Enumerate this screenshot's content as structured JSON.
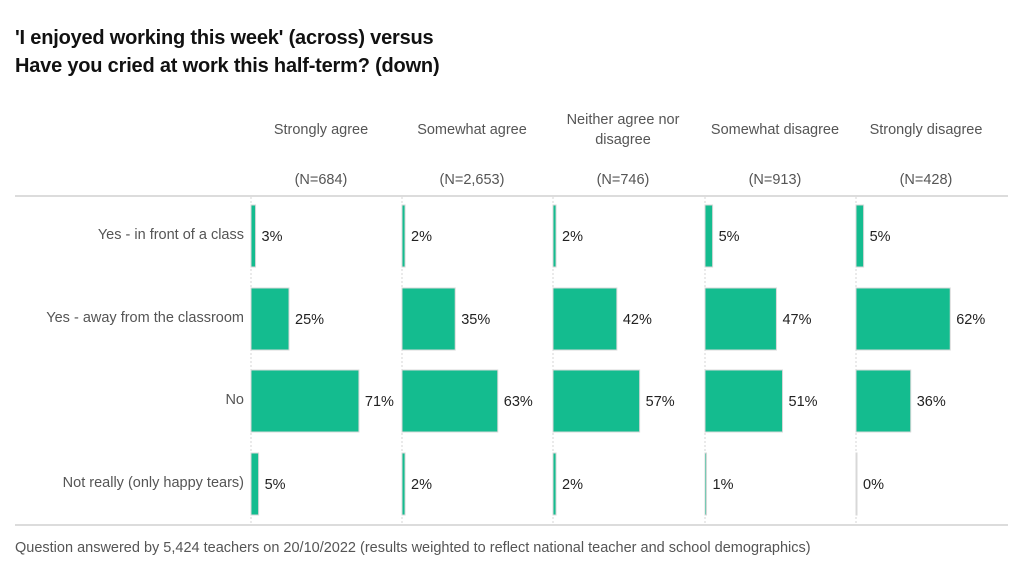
{
  "title": {
    "line1": "'I enjoyed working this week' (across) versus",
    "line2": "Have you cried at work this half-term? (down)"
  },
  "footer": "Question answered by 5,424 teachers on 20/10/2022 (results weighted to reflect national teacher and school demographics)",
  "colors": {
    "bar": "#14bc8f",
    "bar_edge": "#d8d8d8",
    "divider": "#dcdcdc"
  },
  "chart_data": {
    "type": "bar",
    "orientation": "horizontal",
    "layout": "small-multiples",
    "title": "'I enjoyed working this week' (across) versus Have you cried at work this half-term? (down)",
    "columns": [
      {
        "label": "Strongly agree",
        "label_lines": [
          "Strongly agree"
        ],
        "n": "(N=684)"
      },
      {
        "label": "Somewhat agree",
        "label_lines": [
          "Somewhat agree"
        ],
        "n": "(N=2,653)"
      },
      {
        "label": "Neither agree nor disagree",
        "label_lines": [
          "Neither agree nor",
          "disagree"
        ],
        "n": "(N=746)"
      },
      {
        "label": "Somewhat disagree",
        "label_lines": [
          "Somewhat disagree"
        ],
        "n": "(N=913)"
      },
      {
        "label": "Strongly disagree",
        "label_lines": [
          "Strongly disagree"
        ],
        "n": "(N=428)"
      }
    ],
    "categories": [
      "Yes - in front of a class",
      "Yes - away from the classroom",
      "No",
      "Not really (only happy tears)"
    ],
    "series": [
      {
        "name": "Strongly agree",
        "values": [
          3,
          25,
          71,
          5
        ]
      },
      {
        "name": "Somewhat agree",
        "values": [
          2,
          35,
          63,
          2
        ]
      },
      {
        "name": "Neither agree nor disagree",
        "values": [
          2,
          42,
          57,
          2
        ]
      },
      {
        "name": "Somewhat disagree",
        "values": [
          5,
          47,
          51,
          1
        ]
      },
      {
        "name": "Strongly disagree",
        "values": [
          5,
          62,
          36,
          0
        ]
      }
    ],
    "value_suffix": "%",
    "xlim": [
      0,
      100
    ],
    "xlabel": "",
    "ylabel": "",
    "grid": false,
    "legend": "none"
  }
}
